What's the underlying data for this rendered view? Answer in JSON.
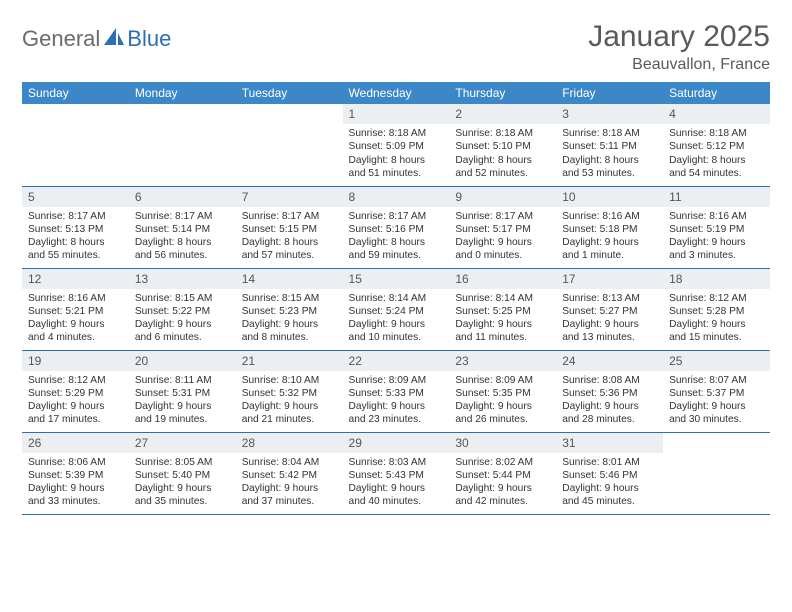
{
  "logo": {
    "general": "General",
    "blue": "Blue"
  },
  "header": {
    "title": "January 2025",
    "location": "Beauvallon, France"
  },
  "colors": {
    "header_bg": "#3c87c7",
    "border": "#2d6fb5",
    "daynum_bg": "#eceff1",
    "text": "#333333",
    "title_text": "#5a5a5a"
  },
  "weekdays": [
    "Sunday",
    "Monday",
    "Tuesday",
    "Wednesday",
    "Thursday",
    "Friday",
    "Saturday"
  ],
  "weeks": [
    [
      null,
      null,
      null,
      {
        "n": "1",
        "sr": "8:18 AM",
        "ss": "5:09 PM",
        "dl": "8 hours and 51 minutes."
      },
      {
        "n": "2",
        "sr": "8:18 AM",
        "ss": "5:10 PM",
        "dl": "8 hours and 52 minutes."
      },
      {
        "n": "3",
        "sr": "8:18 AM",
        "ss": "5:11 PM",
        "dl": "8 hours and 53 minutes."
      },
      {
        "n": "4",
        "sr": "8:18 AM",
        "ss": "5:12 PM",
        "dl": "8 hours and 54 minutes."
      }
    ],
    [
      {
        "n": "5",
        "sr": "8:17 AM",
        "ss": "5:13 PM",
        "dl": "8 hours and 55 minutes."
      },
      {
        "n": "6",
        "sr": "8:17 AM",
        "ss": "5:14 PM",
        "dl": "8 hours and 56 minutes."
      },
      {
        "n": "7",
        "sr": "8:17 AM",
        "ss": "5:15 PM",
        "dl": "8 hours and 57 minutes."
      },
      {
        "n": "8",
        "sr": "8:17 AM",
        "ss": "5:16 PM",
        "dl": "8 hours and 59 minutes."
      },
      {
        "n": "9",
        "sr": "8:17 AM",
        "ss": "5:17 PM",
        "dl": "9 hours and 0 minutes."
      },
      {
        "n": "10",
        "sr": "8:16 AM",
        "ss": "5:18 PM",
        "dl": "9 hours and 1 minute."
      },
      {
        "n": "11",
        "sr": "8:16 AM",
        "ss": "5:19 PM",
        "dl": "9 hours and 3 minutes."
      }
    ],
    [
      {
        "n": "12",
        "sr": "8:16 AM",
        "ss": "5:21 PM",
        "dl": "9 hours and 4 minutes."
      },
      {
        "n": "13",
        "sr": "8:15 AM",
        "ss": "5:22 PM",
        "dl": "9 hours and 6 minutes."
      },
      {
        "n": "14",
        "sr": "8:15 AM",
        "ss": "5:23 PM",
        "dl": "9 hours and 8 minutes."
      },
      {
        "n": "15",
        "sr": "8:14 AM",
        "ss": "5:24 PM",
        "dl": "9 hours and 10 minutes."
      },
      {
        "n": "16",
        "sr": "8:14 AM",
        "ss": "5:25 PM",
        "dl": "9 hours and 11 minutes."
      },
      {
        "n": "17",
        "sr": "8:13 AM",
        "ss": "5:27 PM",
        "dl": "9 hours and 13 minutes."
      },
      {
        "n": "18",
        "sr": "8:12 AM",
        "ss": "5:28 PM",
        "dl": "9 hours and 15 minutes."
      }
    ],
    [
      {
        "n": "19",
        "sr": "8:12 AM",
        "ss": "5:29 PM",
        "dl": "9 hours and 17 minutes."
      },
      {
        "n": "20",
        "sr": "8:11 AM",
        "ss": "5:31 PM",
        "dl": "9 hours and 19 minutes."
      },
      {
        "n": "21",
        "sr": "8:10 AM",
        "ss": "5:32 PM",
        "dl": "9 hours and 21 minutes."
      },
      {
        "n": "22",
        "sr": "8:09 AM",
        "ss": "5:33 PM",
        "dl": "9 hours and 23 minutes."
      },
      {
        "n": "23",
        "sr": "8:09 AM",
        "ss": "5:35 PM",
        "dl": "9 hours and 26 minutes."
      },
      {
        "n": "24",
        "sr": "8:08 AM",
        "ss": "5:36 PM",
        "dl": "9 hours and 28 minutes."
      },
      {
        "n": "25",
        "sr": "8:07 AM",
        "ss": "5:37 PM",
        "dl": "9 hours and 30 minutes."
      }
    ],
    [
      {
        "n": "26",
        "sr": "8:06 AM",
        "ss": "5:39 PM",
        "dl": "9 hours and 33 minutes."
      },
      {
        "n": "27",
        "sr": "8:05 AM",
        "ss": "5:40 PM",
        "dl": "9 hours and 35 minutes."
      },
      {
        "n": "28",
        "sr": "8:04 AM",
        "ss": "5:42 PM",
        "dl": "9 hours and 37 minutes."
      },
      {
        "n": "29",
        "sr": "8:03 AM",
        "ss": "5:43 PM",
        "dl": "9 hours and 40 minutes."
      },
      {
        "n": "30",
        "sr": "8:02 AM",
        "ss": "5:44 PM",
        "dl": "9 hours and 42 minutes."
      },
      {
        "n": "31",
        "sr": "8:01 AM",
        "ss": "5:46 PM",
        "dl": "9 hours and 45 minutes."
      },
      null
    ]
  ],
  "labels": {
    "sunrise": "Sunrise:",
    "sunset": "Sunset:",
    "daylight": "Daylight:"
  }
}
